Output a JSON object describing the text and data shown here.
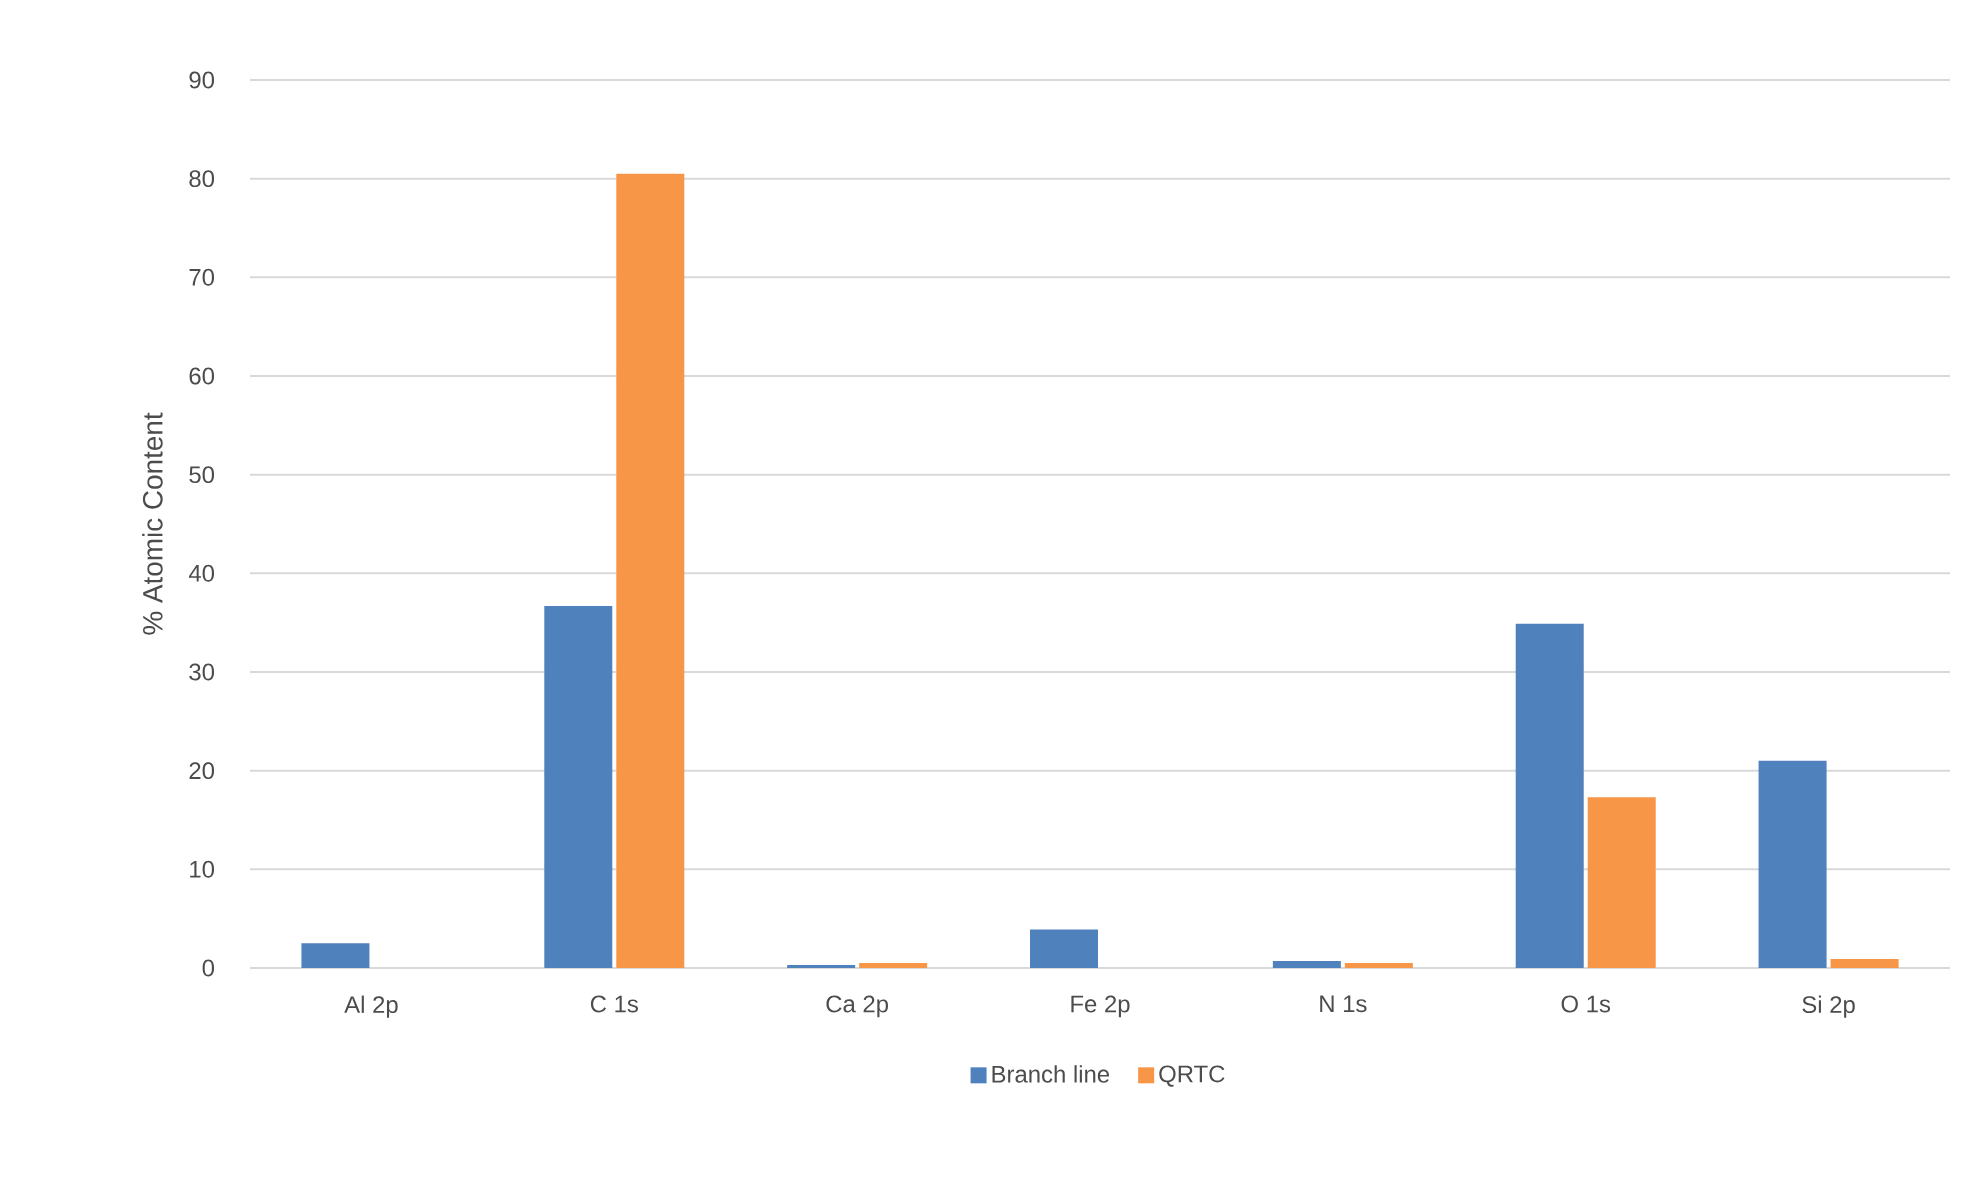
{
  "chart_data": {
    "type": "bar",
    "ylabel": "% Atomic Content",
    "categories": [
      "Al 2p",
      "C 1s",
      "Ca 2p",
      "Fe 2p",
      "N 1s",
      "O 1s",
      "Si 2p"
    ],
    "series": [
      {
        "name": "Branch line",
        "color": "#4f81bd",
        "values": [
          2.5,
          36.7,
          0.3,
          3.9,
          0.7,
          34.9,
          21.0
        ]
      },
      {
        "name": "QRTC",
        "color": "#f79646",
        "values": [
          null,
          80.5,
          0.5,
          null,
          0.5,
          17.3,
          0.9
        ]
      }
    ],
    "ylim": [
      0,
      90
    ],
    "yticks": [
      0,
      10,
      20,
      30,
      40,
      50,
      60,
      70,
      80,
      90
    ],
    "grid": "y",
    "legend": "bottom"
  }
}
